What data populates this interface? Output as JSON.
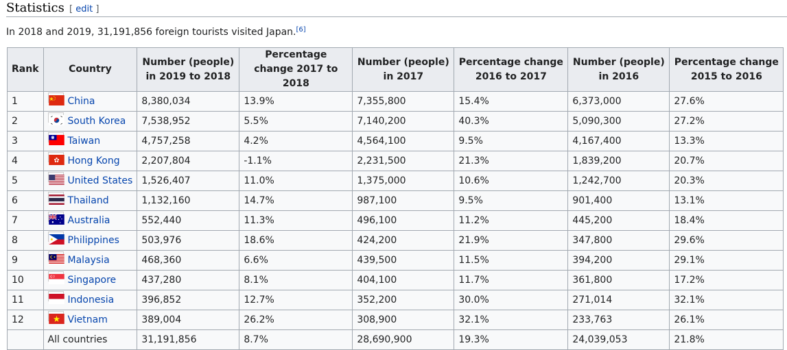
{
  "section": {
    "title": "Statistics",
    "edit_open": "[ ",
    "edit_label": "edit",
    "edit_close": " ]"
  },
  "intro": {
    "text": "In 2018 and 2019, 31,191,856 foreign tourists visited Japan.",
    "ref": "[6]"
  },
  "table": {
    "headers": [
      "Rank",
      "Country",
      "Number (people) in 2019 to 2018",
      "Percentage change 2017 to 2018",
      "Number (people) in 2017",
      "Percentage change 2016 to 2017",
      "Number (people) in 2016",
      "Percentage change 2015 to 2016"
    ],
    "rows": [
      {
        "rank": "1",
        "country": "China",
        "flag": "china-flag",
        "n2019": "8,380,034",
        "p2018": "13.9%",
        "n2017": "7,355,800",
        "p2017": "15.4%",
        "n2016": "6,373,000",
        "p2016": "27.6%"
      },
      {
        "rank": "2",
        "country": "South Korea",
        "flag": "south-korea-flag",
        "n2019": "7,538,952",
        "p2018": "5.5%",
        "n2017": "7,140,200",
        "p2017": "40.3%",
        "n2016": "5,090,300",
        "p2016": "27.2%"
      },
      {
        "rank": "3",
        "country": "Taiwan",
        "flag": "taiwan-flag",
        "n2019": "4,757,258",
        "p2018": "4.2%",
        "n2017": "4,564,100",
        "p2017": "9.5%",
        "n2016": "4,167,400",
        "p2016": "13.3%"
      },
      {
        "rank": "4",
        "country": "Hong Kong",
        "flag": "hong-kong-flag",
        "n2019": "2,207,804",
        "p2018": "-1.1%",
        "n2017": "2,231,500",
        "p2017": "21.3%",
        "n2016": "1,839,200",
        "p2016": "20.7%"
      },
      {
        "rank": "5",
        "country": "United States",
        "flag": "united-states-flag",
        "n2019": "1,526,407",
        "p2018": "11.0%",
        "n2017": "1,375,000",
        "p2017": "10.6%",
        "n2016": "1,242,700",
        "p2016": "20.3%"
      },
      {
        "rank": "6",
        "country": "Thailand",
        "flag": "thailand-flag",
        "n2019": "1,132,160",
        "p2018": "14.7%",
        "n2017": "987,100",
        "p2017": "9.5%",
        "n2016": "901,400",
        "p2016": "13.1%"
      },
      {
        "rank": "7",
        "country": "Australia",
        "flag": "australia-flag",
        "n2019": "552,440",
        "p2018": "11.3%",
        "n2017": "496,100",
        "p2017": "11.2%",
        "n2016": "445,200",
        "p2016": "18.4%"
      },
      {
        "rank": "8",
        "country": "Philippines",
        "flag": "philippines-flag",
        "n2019": "503,976",
        "p2018": "18.6%",
        "n2017": "424,200",
        "p2017": "21.9%",
        "n2016": "347,800",
        "p2016": "29.6%"
      },
      {
        "rank": "9",
        "country": "Malaysia",
        "flag": "malaysia-flag",
        "n2019": "468,360",
        "p2018": "6.6%",
        "n2017": "439,500",
        "p2017": "11.5%",
        "n2016": "394,200",
        "p2016": "29.1%"
      },
      {
        "rank": "10",
        "country": "Singapore",
        "flag": "singapore-flag",
        "n2019": "437,280",
        "p2018": "8.1%",
        "n2017": "404,100",
        "p2017": "11.7%",
        "n2016": "361,800",
        "p2016": "17.2%"
      },
      {
        "rank": "11",
        "country": "Indonesia",
        "flag": "indonesia-flag",
        "n2019": "396,852",
        "p2018": "12.7%",
        "n2017": "352,200",
        "p2017": "30.0%",
        "n2016": "271,014",
        "p2016": "32.1%"
      },
      {
        "rank": "12",
        "country": "Vietnam",
        "flag": "vietnam-flag",
        "n2019": "389,004",
        "p2018": "26.2%",
        "n2017": "308,900",
        "p2017": "32.1%",
        "n2016": "233,763",
        "p2016": "26.1%"
      }
    ],
    "total": {
      "rank": "",
      "country": "All countries",
      "n2019": "31,191,856",
      "p2018": "8.7%",
      "n2017": "28,690,900",
      "p2017": "19.3%",
      "n2016": "24,039,053",
      "p2016": "21.8%"
    }
  },
  "colors": {
    "link": "#0645ad",
    "header_bg": "#eaecf0",
    "cell_bg": "#f8f9fa",
    "border": "#a2a9b1"
  }
}
